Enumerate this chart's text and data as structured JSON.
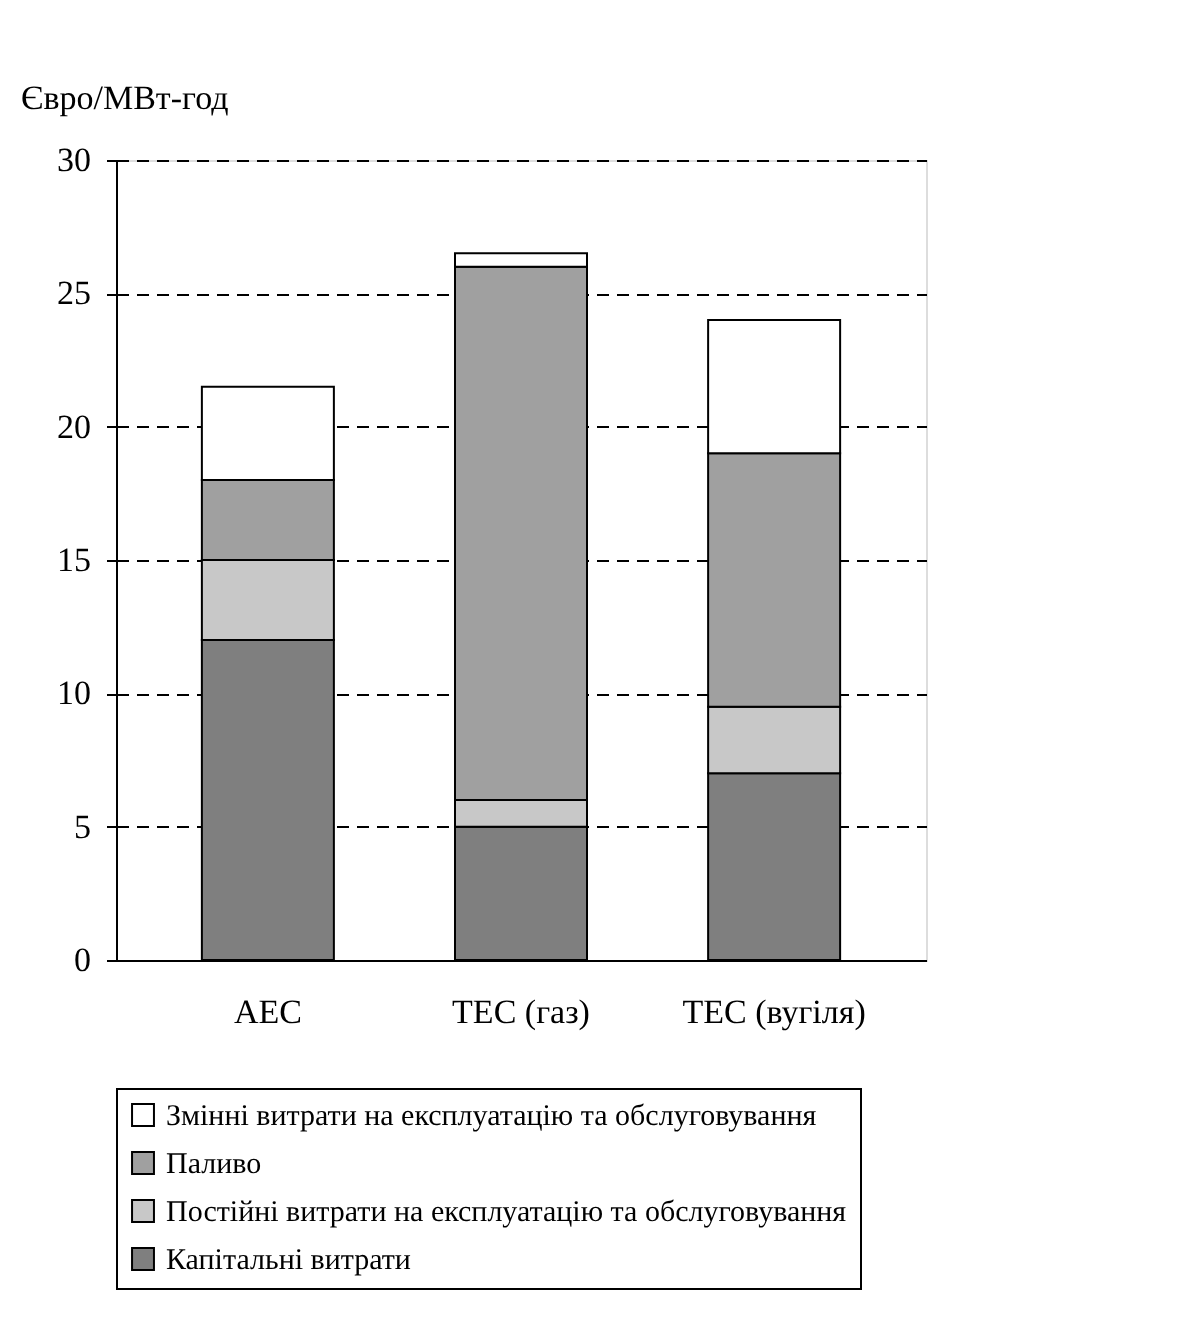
{
  "chart_data": {
    "type": "bar",
    "stacked": true,
    "ylabel": "Євро/МВт-год",
    "categories": [
      "AEC",
      "TEC (газ)",
      "TEC (вугіля)"
    ],
    "series": [
      {
        "name": "Капітальні витрати",
        "color": "#7f7f7f",
        "values": [
          12,
          5,
          7
        ]
      },
      {
        "name": "Постійні витрати на експлуатацію та обслуговування",
        "color": "#c8c8c8",
        "values": [
          3,
          1,
          2.5
        ]
      },
      {
        "name": "Паливо",
        "color": "#a0a0a0",
        "values": [
          3,
          20,
          9.5
        ]
      },
      {
        "name": "Змінні витрати на експлуатацію та обслуговування",
        "color": "#ffffff",
        "values": [
          3.5,
          0.5,
          5
        ]
      }
    ],
    "ylim": [
      0,
      30
    ],
    "yticks": [
      0,
      5,
      10,
      15,
      20,
      25,
      30
    ],
    "grid": "y",
    "legend": "bottom"
  }
}
